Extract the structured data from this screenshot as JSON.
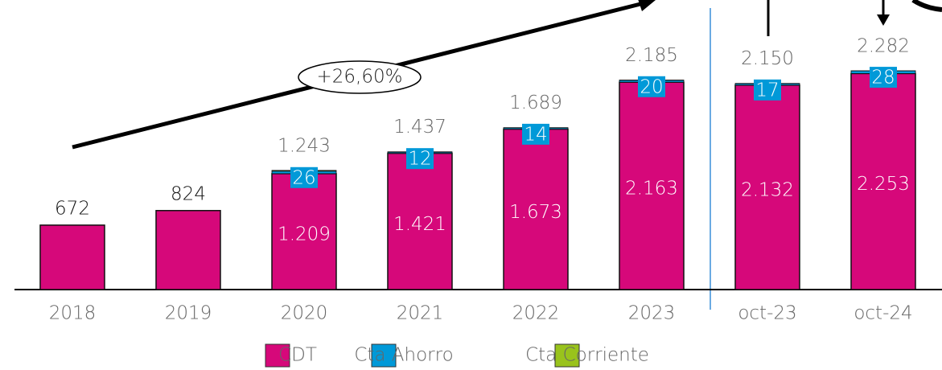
{
  "chart_data": {
    "type": "stacked_bar",
    "categories": [
      "2018",
      "2019",
      "2020",
      "2021",
      "2022",
      "2023",
      "oct-23",
      "oct-24"
    ],
    "series": [
      {
        "name": "CDT",
        "color": "#d6087a",
        "values": [
          672,
          824,
          1209,
          1421,
          1673,
          2163,
          2132,
          2253
        ],
        "value_labels": [
          "672",
          "824",
          "1.209",
          "1.421",
          "1.673",
          "2.163",
          "2.132",
          "2.253"
        ]
      },
      {
        "name": "Cta Ahorro",
        "color": "#0099d8",
        "values": [
          null,
          null,
          26,
          12,
          14,
          20,
          17,
          28
        ]
      },
      {
        "name": "Cta Corriente",
        "color": "#99c31c",
        "values": [
          null,
          null,
          8,
          4,
          2,
          2,
          1,
          1
        ]
      }
    ],
    "totals": {
      "values": [
        null,
        null,
        1243,
        1437,
        1689,
        2185,
        2150,
        2282
      ],
      "value_labels": [
        null,
        null,
        "1.243",
        "1.437",
        "1.689",
        "2.185",
        "2.150",
        "2.282"
      ]
    },
    "annotation": "+26,60%",
    "ylim": [
      0,
      3020
    ],
    "legend": "bottom"
  }
}
